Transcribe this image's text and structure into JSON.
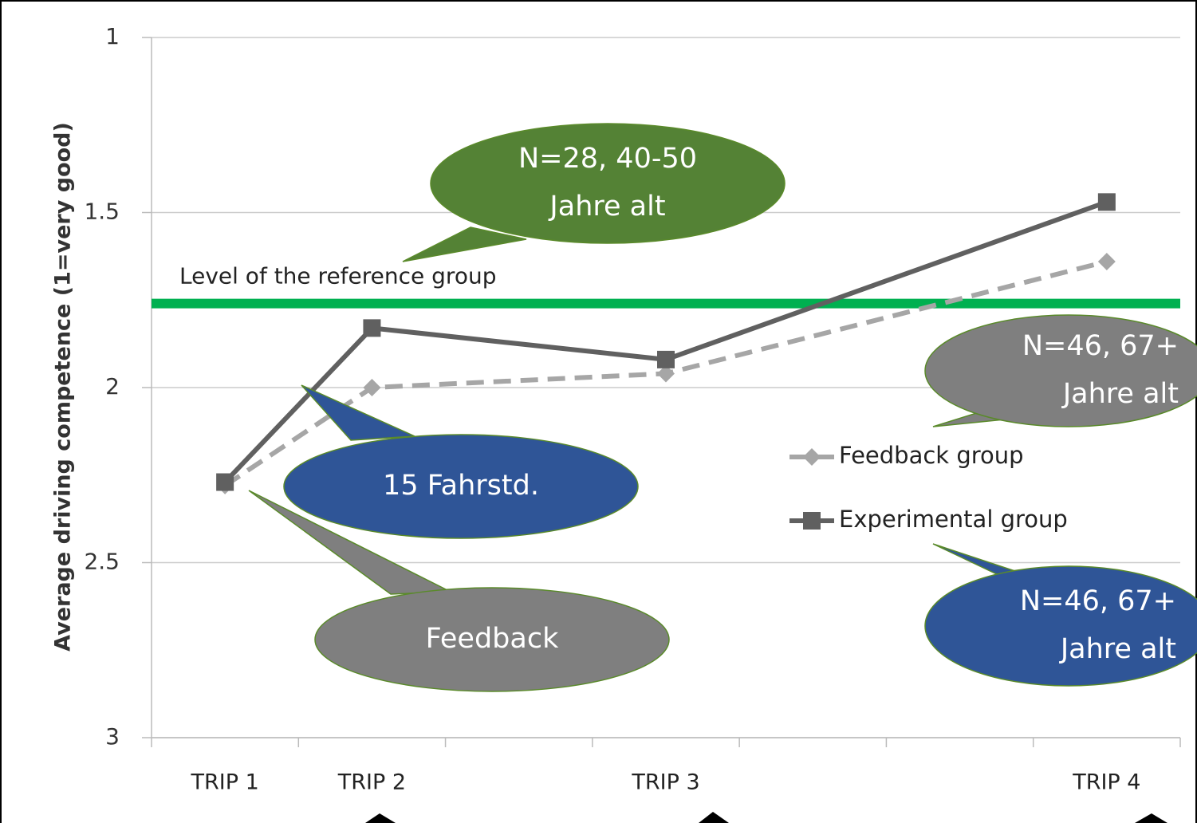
{
  "chart_data": {
    "type": "line",
    "y_label": "Average driving competence (1=very good)",
    "categories": [
      "TRIP 1",
      "TRIP 2",
      "TRIP 3",
      "TRIP 4"
    ],
    "x": [
      0.5,
      1.5,
      3.5,
      6.5
    ],
    "xlim": [
      0,
      7
    ],
    "xticks": [
      0,
      1,
      2,
      3,
      4,
      5,
      6,
      7
    ],
    "ylim": [
      1,
      3
    ],
    "y_inverted": true,
    "yticks": [
      1,
      1.5,
      2,
      2.5,
      3
    ],
    "grid": true,
    "legend": "right",
    "series": [
      {
        "name": "Feedback group",
        "color": "#a6a6a6",
        "dash": true,
        "marker": "diamond",
        "values": [
          2.28,
          2.0,
          1.96,
          1.64
        ]
      },
      {
        "name": "Experimental group",
        "color": "#606060",
        "dash": false,
        "marker": "square",
        "values": [
          2.27,
          1.83,
          1.92,
          1.47
        ]
      }
    ],
    "reference_line": {
      "value": 1.76,
      "label": "Level of the reference group",
      "color": "#00b050"
    },
    "annotations": [
      {
        "lines": [
          "N=28, 40-50",
          "Jahre alt"
        ],
        "color": "#548235"
      },
      {
        "lines": [
          "N=46, 67+",
          "Jahre alt"
        ],
        "color": "#7f7f7f"
      },
      {
        "lines": [
          "15 Fahrstd."
        ],
        "color": "#2f5597"
      },
      {
        "lines": [
          "Feedback"
        ],
        "color": "#7f7f7f"
      },
      {
        "lines": [
          "N=46, 67+",
          "Jahre alt"
        ],
        "color": "#2f5597"
      }
    ]
  }
}
